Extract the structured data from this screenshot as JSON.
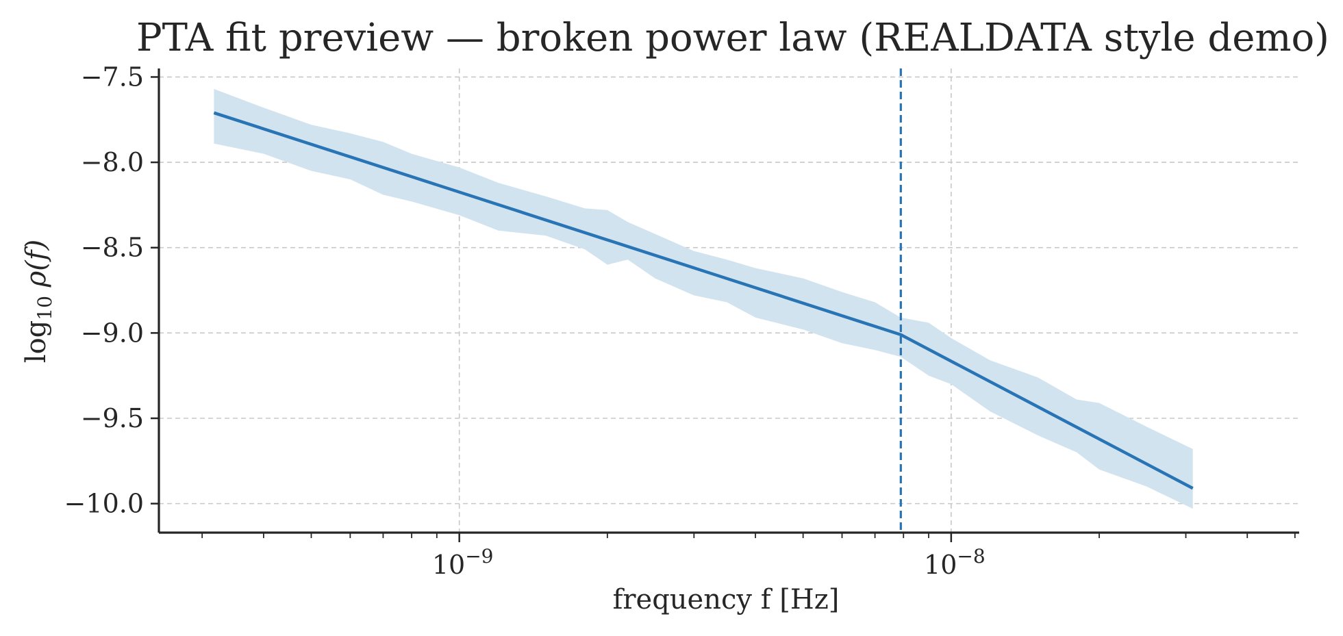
{
  "chart_data": {
    "type": "line",
    "title": "PTA fit preview — broken power law (REALDATA style demo)",
    "xlabel": "frequency f [Hz]",
    "ylabel": "log10 ρ(f)",
    "x_scale": "log",
    "xlim": [
      2.45e-10,
      5.1e-08
    ],
    "ylim": [
      -10.17,
      -7.45
    ],
    "grid": true,
    "x_tick_labels": [
      {
        "value": 1e-09,
        "base": "10",
        "exp": "−9"
      },
      {
        "value": 1e-08,
        "base": "10",
        "exp": "−8"
      }
    ],
    "y_ticks": [
      -7.5,
      -8.0,
      -8.5,
      -9.0,
      -9.5,
      -10.0
    ],
    "y_tick_labels": [
      "−7.5",
      "−8.0",
      "−8.5",
      "−9.0",
      "−9.5",
      "−10.0"
    ],
    "break_frequency": 7.9e-09,
    "colors": {
      "line": "#2874b5",
      "band": "#d2e3f0",
      "vline": "#2874b5"
    },
    "series": [
      {
        "kind": "median",
        "x": [
          3.17e-10,
          7.9e-09,
          3.1e-08
        ],
        "y": [
          -7.71,
          -9.01,
          -9.91
        ]
      },
      {
        "kind": "band",
        "x": [
          3.17e-10,
          4e-10,
          5e-10,
          6e-10,
          7e-10,
          8e-10,
          1e-09,
          1.2e-09,
          1.5e-09,
          1.8e-09,
          2e-09,
          2.2e-09,
          2.5e-09,
          3e-09,
          3.5e-09,
          4e-09,
          5e-09,
          6e-09,
          7e-09,
          7.9e-09,
          9e-09,
          1e-08,
          1.2e-08,
          1.5e-08,
          1.8e-08,
          2e-08,
          2.5e-08,
          3.1e-08
        ],
        "upper": [
          -7.57,
          -7.68,
          -7.78,
          -7.83,
          -7.88,
          -7.95,
          -8.03,
          -8.12,
          -8.2,
          -8.27,
          -8.28,
          -8.35,
          -8.42,
          -8.52,
          -8.57,
          -8.62,
          -8.68,
          -8.76,
          -8.82,
          -8.91,
          -8.94,
          -9.03,
          -9.16,
          -9.26,
          -9.39,
          -9.41,
          -9.55,
          -9.68
        ],
        "lower": [
          -7.89,
          -7.95,
          -8.05,
          -8.1,
          -8.19,
          -8.23,
          -8.31,
          -8.4,
          -8.43,
          -8.51,
          -8.6,
          -8.57,
          -8.68,
          -8.78,
          -8.82,
          -8.91,
          -8.98,
          -9.06,
          -9.1,
          -9.14,
          -9.25,
          -9.3,
          -9.46,
          -9.6,
          -9.7,
          -9.8,
          -9.9,
          -10.03
        ]
      }
    ]
  }
}
